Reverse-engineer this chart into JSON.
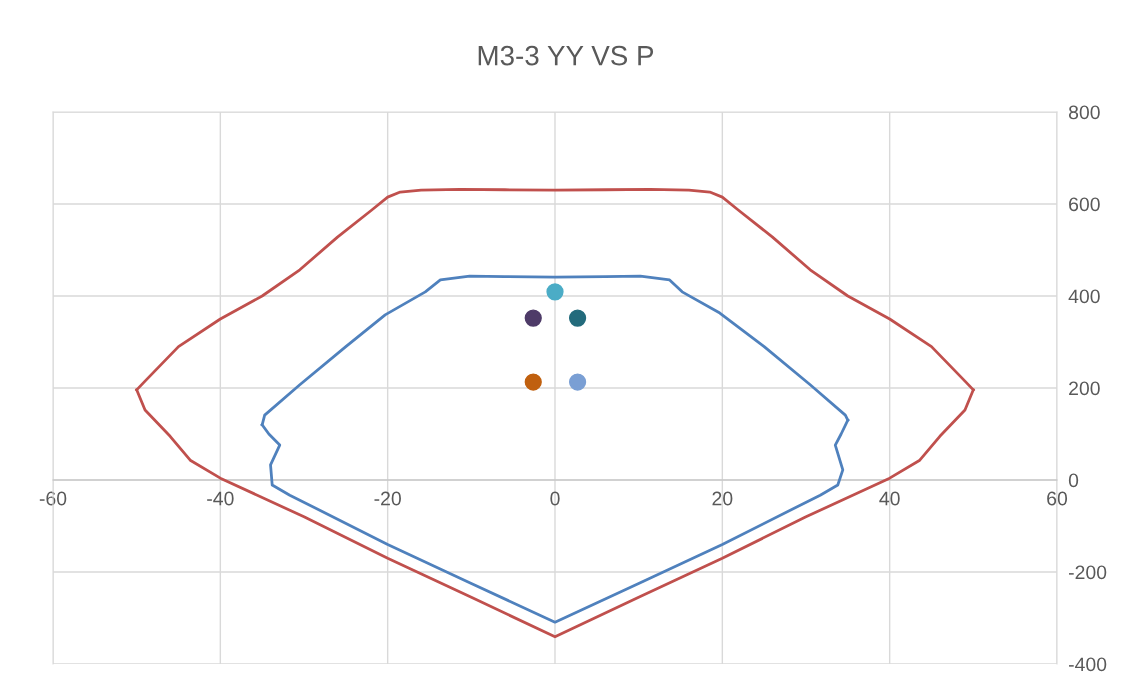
{
  "chart_data": {
    "type": "line",
    "title": "M3-3 YY VS P",
    "xlim": [
      -60,
      60
    ],
    "xticks": [
      -60,
      -40,
      -20,
      0,
      20,
      40,
      60
    ],
    "ylim": [
      -400,
      800
    ],
    "yticks": [
      -400,
      -200,
      0,
      200,
      400,
      600,
      800
    ],
    "grid": true,
    "legend": false,
    "series": [
      {
        "marker": "none",
        "color": "#c0504d",
        "x": [
          -50,
          -49,
          -45,
          -40,
          -35,
          -30.5,
          -26,
          -21.9,
          -20,
          -18.5,
          -16,
          -11.4,
          -6,
          0,
          6,
          11.4,
          16,
          18.5,
          20,
          21.9,
          26,
          30.5,
          35,
          40,
          45,
          49,
          50
        ],
        "values": [
          196,
          215,
          290,
          350,
          400,
          457,
          528,
          587,
          615,
          626,
          630,
          632,
          631,
          630,
          631,
          632,
          630,
          626,
          615,
          587,
          528,
          457,
          400,
          350,
          290,
          215,
          196
        ]
      },
      {
        "marker": "none",
        "color": "#c0504d",
        "x": [
          -50,
          -49,
          -46,
          -43.6,
          -40,
          -30,
          -20,
          -10,
          0,
          10,
          20,
          30,
          40,
          43.6,
          46,
          49,
          50
        ],
        "values": [
          196,
          152,
          95,
          43,
          4,
          -80,
          -170,
          -255,
          -341,
          -255,
          -170,
          -80,
          4,
          43,
          95,
          152,
          196
        ]
      },
      {
        "marker": "none",
        "color": "#4f81bd",
        "x": [
          -35,
          -34.7,
          -30.5,
          -25,
          -20.3,
          -15.5,
          -13.7,
          -10.2,
          -6,
          0,
          6,
          10.2,
          13.7,
          15.2,
          19.7,
          25,
          30.5,
          34.7,
          35
        ],
        "values": [
          120,
          141,
          207,
          290,
          359,
          409,
          435,
          443,
          442,
          441,
          442,
          443,
          435,
          409,
          363,
          290,
          207,
          141,
          130
        ]
      },
      {
        "marker": "none",
        "color": "#4f81bd",
        "x": [
          -35,
          -34.2,
          -32.9,
          -34,
          -33.8,
          -31.7,
          -20,
          -10,
          0,
          10,
          20,
          31.7,
          33.8,
          34.4,
          33.5,
          34.2,
          35
        ],
        "values": [
          120,
          100,
          76,
          33,
          -11,
          -33,
          -140,
          -225,
          -309,
          -225,
          -140,
          -33,
          -11,
          22,
          76,
          100,
          130
        ]
      },
      {
        "type": "scatter",
        "marker": "circle",
        "color": "#4bacc6",
        "x": [
          0
        ],
        "values": [
          409
        ]
      },
      {
        "type": "scatter",
        "marker": "circle",
        "color": "#4e3b68",
        "x": [
          -2.6
        ],
        "values": [
          352
        ]
      },
      {
        "type": "scatter",
        "marker": "circle",
        "color": "#236b7c",
        "x": [
          2.7
        ],
        "values": [
          352
        ]
      },
      {
        "type": "scatter",
        "marker": "circle",
        "color": "#c0600f",
        "x": [
          -2.6
        ],
        "values": [
          213
        ]
      },
      {
        "type": "scatter",
        "marker": "circle",
        "color": "#7a9fd4",
        "x": [
          2.7
        ],
        "values": [
          213
        ]
      }
    ]
  }
}
